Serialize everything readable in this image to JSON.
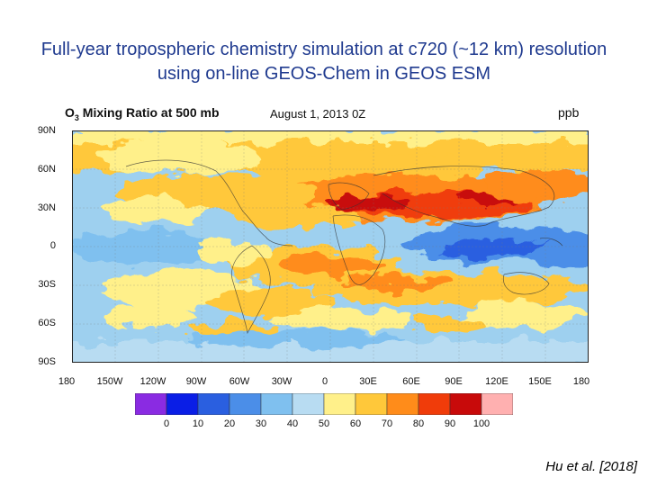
{
  "slide": {
    "title_line1": "Full-year tropospheric chemistry simulation at c720 (~12 km) resolution",
    "title_line2": "using on-line GEOS-Chem in GEOS ESM",
    "citation": "Hu et al. [2018]"
  },
  "map": {
    "title_prefix": "O",
    "title_sub": "3",
    "title_suffix": " Mixing Ratio at 500 mb",
    "date": "August 1, 2013  0Z",
    "unit": "ppb",
    "lat_labels": [
      "90N",
      "60N",
      "30N",
      "0",
      "30S",
      "60S",
      "90S"
    ],
    "lon_labels": [
      "180",
      "150W",
      "120W",
      "90W",
      "60W",
      "30W",
      "0",
      "30E",
      "60E",
      "90E",
      "120E",
      "150E",
      "180"
    ]
  },
  "colorbar": {
    "labels": [
      "0",
      "10",
      "20",
      "30",
      "40",
      "50",
      "60",
      "70",
      "80",
      "90",
      "100"
    ],
    "colors": [
      "#8a2be2",
      "#0a1ee6",
      "#2a5fe0",
      "#4b8ee8",
      "#7fc0ef",
      "#b8dcf2",
      "#fff08a",
      "#ffc83a",
      "#ff8c1a",
      "#f03c0a",
      "#c80a0a",
      "#ffb0b0"
    ]
  }
}
